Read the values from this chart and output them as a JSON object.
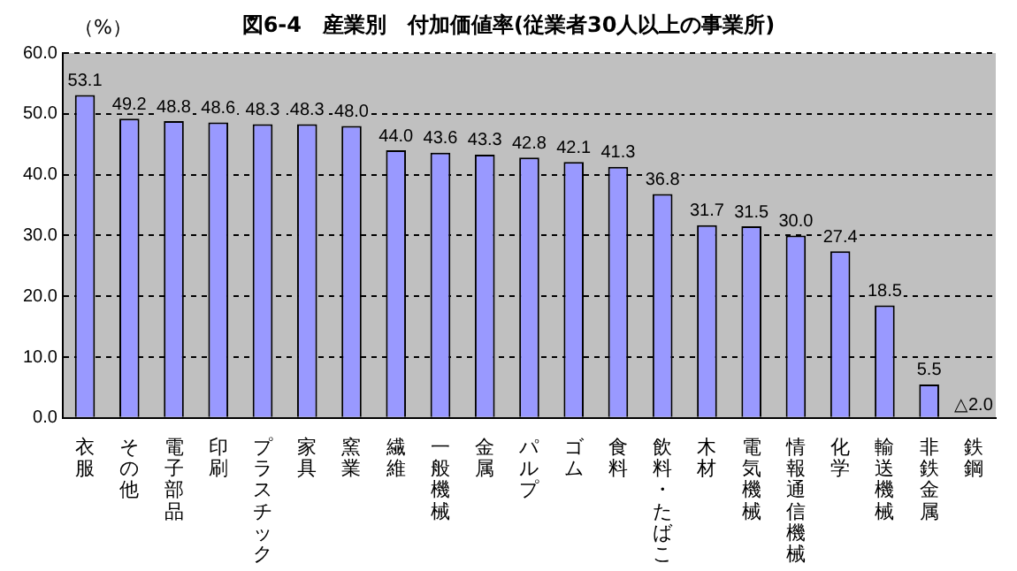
{
  "chart_data": {
    "type": "bar",
    "title": "図6-4　産業別　付加価値率(従業者30人以上の事業所)",
    "ylabel": "（%）",
    "categories": [
      "衣服",
      "その他",
      "電子部品",
      "印刷",
      "プラスチック",
      "家具",
      "窯業",
      "繊維",
      "一般機械",
      "金属",
      "パルプ",
      "ゴム",
      "食料",
      "飲料・たばこ",
      "木材",
      "電気機械",
      "情報通信機械",
      "化学",
      "輸送機械",
      "非鉄金属",
      "鉄鋼"
    ],
    "values": [
      53.1,
      49.2,
      48.8,
      48.6,
      48.3,
      48.3,
      48.0,
      44.0,
      43.6,
      43.3,
      42.8,
      42.1,
      41.3,
      36.8,
      31.7,
      31.5,
      30.0,
      27.4,
      18.5,
      5.5,
      null
    ],
    "value_labels": [
      "53.1",
      "49.2",
      "48.8",
      "48.6",
      "48.3",
      "48.3",
      "48.0",
      "44.0",
      "43.6",
      "43.3",
      "42.8",
      "42.1",
      "41.3",
      "36.8",
      "31.7",
      "31.5",
      "30.0",
      "27.4",
      "18.5",
      "5.5",
      "△2.0"
    ],
    "color": "#9999ff",
    "ylim": [
      0,
      60
    ],
    "yticks": [
      {
        "value": 0,
        "label": "0.0"
      },
      {
        "value": 10,
        "label": "10.0"
      },
      {
        "value": 20,
        "label": "20.0"
      },
      {
        "value": 30,
        "label": "30.0"
      },
      {
        "value": 40,
        "label": "40.0"
      },
      {
        "value": 50,
        "label": "50.0"
      },
      {
        "value": 60,
        "label": "60.0"
      }
    ],
    "grid": "y",
    "legend": false
  }
}
